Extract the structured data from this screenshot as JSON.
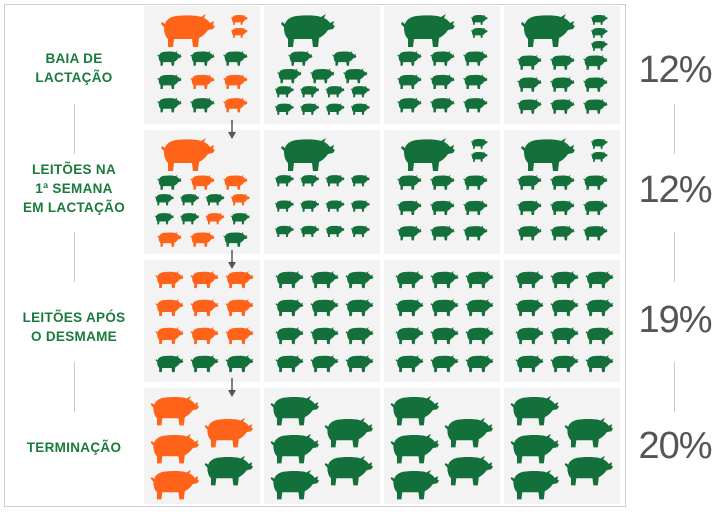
{
  "colors": {
    "orange": "#ff6319",
    "green": "#13703a",
    "label_green": "#1a7a3c",
    "percent_gray": "#555555",
    "cell_bg": "#f3f3f3",
    "arrow": "#555555"
  },
  "icon": "pig-silhouette-icon",
  "rows": [
    {
      "label_lines": [
        "BAIA DE",
        "LACTAÇÃO"
      ],
      "percent": "12%",
      "cells": [
        {
          "adults": [
            {
              "color": "orange"
            }
          ],
          "piglets": {
            "right": [
              "orange",
              "orange"
            ],
            "rows": [
              [
                "green",
                "green",
                "green"
              ],
              [
                "green",
                "orange",
                "orange"
              ],
              [
                "green",
                "green",
                "orange"
              ]
            ]
          }
        },
        {
          "adults": [
            {
              "color": "green"
            }
          ],
          "piglets": {
            "rows": [
              [
                "green",
                "green"
              ],
              [
                "green",
                "green",
                "green"
              ],
              [
                "green",
                "green",
                "green",
                "green"
              ],
              [
                "green",
                "green",
                "green",
                "green"
              ]
            ]
          }
        },
        {
          "adults": [
            {
              "color": "green"
            }
          ],
          "piglets": {
            "right": [
              "green",
              "green"
            ],
            "rows": [
              [
                "green",
                "green",
                "green"
              ],
              [
                "green",
                "green",
                "green"
              ],
              [
                "green",
                "green",
                "green"
              ]
            ]
          }
        },
        {
          "adults": [
            {
              "color": "green"
            }
          ],
          "piglets": {
            "right": [
              "green",
              "green",
              "green"
            ],
            "rows": [
              [
                "green",
                "green",
                "green"
              ],
              [
                "green",
                "green",
                "green"
              ],
              [
                "green",
                "green",
                "green"
              ]
            ]
          }
        }
      ]
    },
    {
      "label_lines": [
        "LEITÕES NA",
        "1ª SEMANA",
        "EM LACTAÇÃO"
      ],
      "percent": "12%",
      "cells": [
        {
          "adults": [
            {
              "color": "orange"
            }
          ],
          "piglets": {
            "rows": [
              [
                "green",
                "orange",
                "orange"
              ],
              [
                "green",
                "green",
                "green",
                "orange"
              ],
              [
                "green",
                "green",
                "orange",
                "green"
              ],
              [
                "orange",
                "orange",
                "green"
              ]
            ]
          }
        },
        {
          "adults": [
            {
              "color": "green"
            }
          ],
          "piglets": {
            "rows": [
              [
                "green",
                "green",
                "green",
                "green"
              ],
              [
                "green",
                "green",
                "green",
                "green"
              ],
              [
                "green",
                "green",
                "green",
                "green"
              ]
            ]
          }
        },
        {
          "adults": [
            {
              "color": "green"
            }
          ],
          "piglets": {
            "right": [
              "green",
              "green"
            ],
            "rows": [
              [
                "green",
                "green",
                "green"
              ],
              [
                "green",
                "green",
                "green"
              ],
              [
                "green",
                "green",
                "green"
              ]
            ]
          }
        },
        {
          "adults": [
            {
              "color": "green"
            }
          ],
          "piglets": {
            "right": [
              "green",
              "green"
            ],
            "rows": [
              [
                "green",
                "green",
                "green"
              ],
              [
                "green",
                "green",
                "green"
              ],
              [
                "green",
                "green",
                "green"
              ]
            ]
          }
        }
      ]
    },
    {
      "label_lines": [
        "LEITÕES APÓS",
        "O DESMAME"
      ],
      "percent": "19%",
      "cells": [
        {
          "grid": [
            [
              "orange",
              "orange",
              "orange"
            ],
            [
              "orange",
              "orange",
              "orange"
            ],
            [
              "orange",
              "orange",
              "orange"
            ],
            [
              "green",
              "green",
              "green"
            ]
          ]
        },
        {
          "grid": [
            [
              "green",
              "green",
              "green"
            ],
            [
              "green",
              "green",
              "green"
            ],
            [
              "green",
              "green",
              "green"
            ],
            [
              "green",
              "green",
              "green"
            ]
          ]
        },
        {
          "grid": [
            [
              "green",
              "green",
              "green"
            ],
            [
              "green",
              "green",
              "green"
            ],
            [
              "green",
              "green",
              "green"
            ],
            [
              "green",
              "green",
              "green"
            ]
          ]
        },
        {
          "grid": [
            [
              "green",
              "green",
              "green"
            ],
            [
              "green",
              "green",
              "green"
            ],
            [
              "green",
              "green",
              "green"
            ],
            [
              "green",
              "green",
              "green"
            ]
          ]
        }
      ]
    },
    {
      "label_lines": [
        "TERMINAÇÃO"
      ],
      "percent": "20%",
      "cells": [
        {
          "finishers": [
            "orange",
            "orange",
            "orange",
            "green",
            "orange"
          ]
        },
        {
          "finishers": [
            "green",
            "green",
            "green",
            "green",
            "green"
          ]
        },
        {
          "finishers": [
            "green",
            "green",
            "green",
            "green",
            "green"
          ]
        },
        {
          "finishers": [
            "green",
            "green",
            "green",
            "green",
            "green"
          ]
        }
      ]
    }
  ]
}
